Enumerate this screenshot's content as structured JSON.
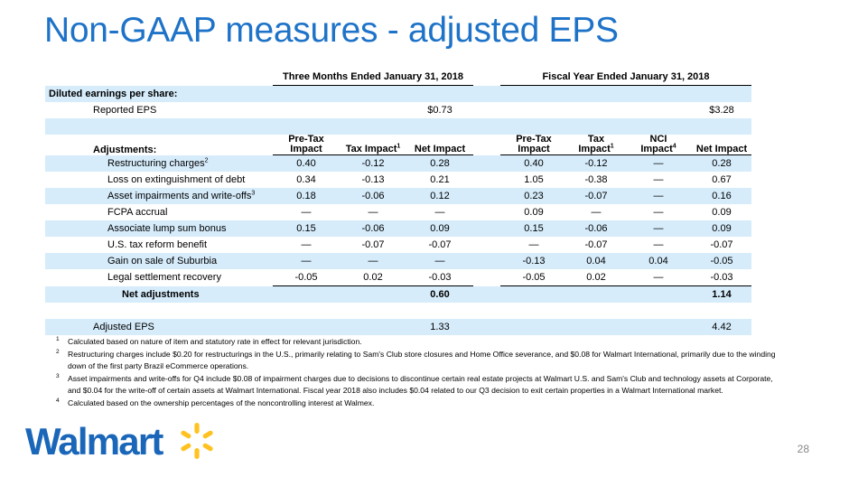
{
  "title": "Non-GAAP measures - adjusted EPS",
  "table": {
    "group_q": "Three Months Ended January 31, 2018",
    "group_fy": "Fiscal Year Ended January 31, 2018",
    "diluted_label": "Diluted earnings per share:",
    "reported_label": "Reported EPS",
    "reported_q": "$0.73",
    "reported_fy": "$3.28",
    "adjustments_label": "Adjustments:",
    "col_pretax_1": "Pre-Tax",
    "col_pretax_2": "Impact",
    "col_tax_q": "Tax Impact",
    "col_tax_q_sup": "1",
    "col_net": "Net Impact",
    "col_tax_fy_1": "Tax",
    "col_tax_fy_2": "Impact",
    "col_tax_fy_sup": "1",
    "col_nci_1": "NCI",
    "col_nci_2": "Impact",
    "col_nci_sup": "4",
    "rows": [
      {
        "label": "Restructuring charges",
        "sup": "2",
        "q_pre": "0.40",
        "q_tax": "-0.12",
        "q_net": "0.28",
        "f_pre": "0.40",
        "f_tax": "-0.12",
        "f_nci": "—",
        "f_net": "0.28"
      },
      {
        "label": "Loss on extinguishment of debt",
        "sup": "",
        "q_pre": "0.34",
        "q_tax": "-0.13",
        "q_net": "0.21",
        "f_pre": "1.05",
        "f_tax": "-0.38",
        "f_nci": "—",
        "f_net": "0.67"
      },
      {
        "label": "Asset impairments and write-offs",
        "sup": "3",
        "q_pre": "0.18",
        "q_tax": "-0.06",
        "q_net": "0.12",
        "f_pre": "0.23",
        "f_tax": "-0.07",
        "f_nci": "—",
        "f_net": "0.16"
      },
      {
        "label": "FCPA accrual",
        "sup": "",
        "q_pre": "—",
        "q_tax": "—",
        "q_net": "—",
        "f_pre": "0.09",
        "f_tax": "—",
        "f_nci": "—",
        "f_net": "0.09"
      },
      {
        "label": "Associate lump sum bonus",
        "sup": "",
        "q_pre": "0.15",
        "q_tax": "-0.06",
        "q_net": "0.09",
        "f_pre": "0.15",
        "f_tax": "-0.06",
        "f_nci": "—",
        "f_net": "0.09"
      },
      {
        "label": "U.S. tax reform benefit",
        "sup": "",
        "q_pre": "—",
        "q_tax": "-0.07",
        "q_net": "-0.07",
        "f_pre": "—",
        "f_tax": "-0.07",
        "f_nci": "—",
        "f_net": "-0.07"
      },
      {
        "label": "Gain on sale of Suburbia",
        "sup": "",
        "q_pre": "—",
        "q_tax": "—",
        "q_net": "—",
        "f_pre": "-0.13",
        "f_tax": "0.04",
        "f_nci": "0.04",
        "f_net": "-0.05"
      },
      {
        "label": "Legal settlement recovery",
        "sup": "",
        "q_pre": "-0.05",
        "q_tax": "0.02",
        "q_net": "-0.03",
        "f_pre": "-0.05",
        "f_tax": "0.02",
        "f_nci": "—",
        "f_net": "-0.03"
      }
    ],
    "net_adj_label": "Net adjustments",
    "net_adj_q": "0.60",
    "net_adj_fy": "1.14",
    "adjusted_label": "Adjusted EPS",
    "adjusted_q": "1.33",
    "adjusted_fy": "4.42"
  },
  "footnotes": [
    {
      "num": "1",
      "text": "Calculated based on nature of item and statutory rate in effect for relevant jurisdiction."
    },
    {
      "num": "2",
      "text": "Restructuring charges include $0.20 for restructurings in the U.S., primarily relating to Sam's Club store closures and Home Office severance, and $0.08 for Walmart International, primarily due to the winding down of the first party Brazil eCommerce operations."
    },
    {
      "num": "3",
      "text": "Asset impairments and write-offs for Q4 include $0.08 of impairment charges due to decisions to discontinue certain real estate projects at Walmart U.S. and Sam's Club and technology assets at Corporate, and $0.04 for the write-off of certain assets at Walmart International. Fiscal year 2018 also includes $0.04 related to our Q3 decision to exit certain properties in a Walmart International market."
    },
    {
      "num": "4",
      "text": "Calculated based on the ownership percentages of the noncontrolling interest at Walmex."
    }
  ],
  "logo": {
    "text": "Walmart",
    "icon": "walmart-spark-icon",
    "brand_blue": "#1a66b8",
    "spark_yellow": "#ffc220"
  },
  "page_number": "28",
  "colors": {
    "title": "#1e73c8",
    "row_band": "#d6ecfb"
  }
}
